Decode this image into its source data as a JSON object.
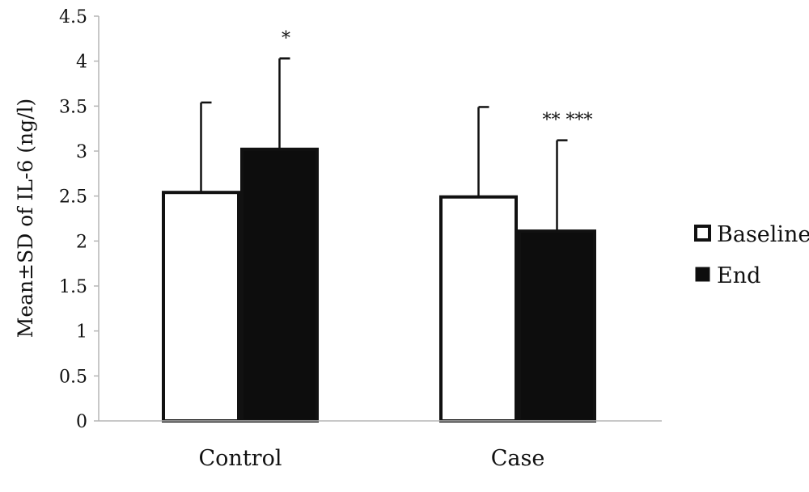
{
  "chart_data": {
    "type": "bar",
    "title": "",
    "xlabel": "",
    "ylabel": "Mean±SD  of IL-6 (ng/l)",
    "ylim": [
      0,
      4.5
    ],
    "yticks": [
      "0",
      "0.5",
      "1",
      "1.5",
      "2",
      "2.5",
      "3",
      "3.5",
      "4",
      "4.5"
    ],
    "grid": false,
    "legend_position": "right",
    "categories": [
      "Control",
      "Case"
    ],
    "series": [
      {
        "name": "Baseline",
        "fill": "#ffffff",
        "stroke": "#111111",
        "values": [
          2.54,
          2.49
        ],
        "error": [
          1.0,
          1.0
        ],
        "annotations": [
          "",
          ""
        ]
      },
      {
        "name": "End",
        "fill": "#0d0d0d",
        "stroke": "#111111",
        "values": [
          3.02,
          2.11
        ],
        "error": [
          1.01,
          1.01
        ],
        "annotations": [
          "*",
          "**   ***"
        ]
      }
    ]
  }
}
